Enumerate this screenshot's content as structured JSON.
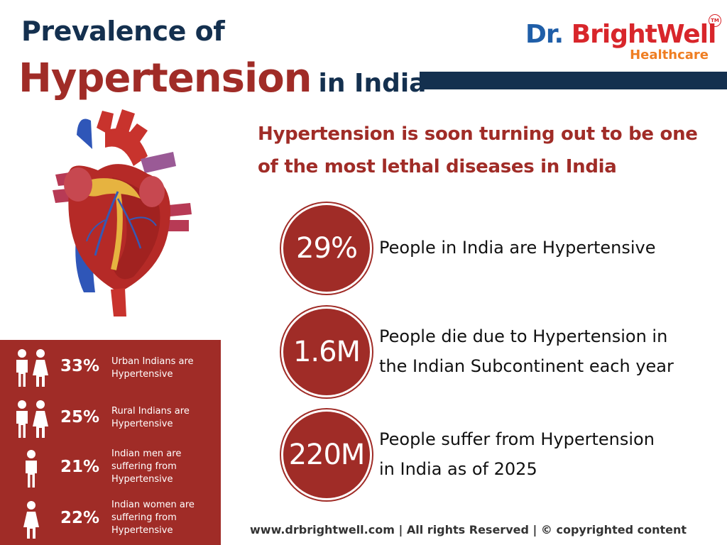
{
  "title": {
    "line1": "Prevalence of",
    "main": "Hypertension",
    "suffix": "in India"
  },
  "logo": {
    "dr": "Dr.",
    "brand": "BrightWell",
    "sub": "Healthcare",
    "tm": "TM"
  },
  "colors": {
    "navy": "#14304f",
    "crimson": "#a02c27",
    "logo_blue": "#1f5ea8",
    "logo_red": "#d8262b",
    "logo_orange": "#ef7e22"
  },
  "headline": {
    "line1": "Hypertension is soon turning out to be one",
    "line2": "of the most lethal diseases in India"
  },
  "stats": [
    {
      "value": "29%",
      "line1": "People in India are Hypertensive",
      "line2": ""
    },
    {
      "value": "1.6M",
      "line1": "People die due to Hypertension in",
      "line2": "the Indian Subcontinent each year"
    },
    {
      "value": "220M",
      "line1": "People suffer from Hypertension",
      "line2": "in India as of 2025"
    }
  ],
  "breakdown": [
    {
      "icon": "couple-icon",
      "percent": "33%",
      "desc": [
        "Urban Indians are",
        "Hypertensive"
      ]
    },
    {
      "icon": "couple-icon",
      "percent": "25%",
      "desc": [
        "Rural Indians are",
        "Hypertensive"
      ]
    },
    {
      "icon": "man-icon",
      "percent": "21%",
      "desc": [
        "Indian men are",
        "suffering from",
        "Hypertensive"
      ]
    },
    {
      "icon": "woman-icon",
      "percent": "22%",
      "desc": [
        "Indian women are",
        "suffering from",
        "Hypertensive"
      ]
    }
  ],
  "footer": "www.drbrightwell.com |  All rights Reserved | © copyrighted content"
}
